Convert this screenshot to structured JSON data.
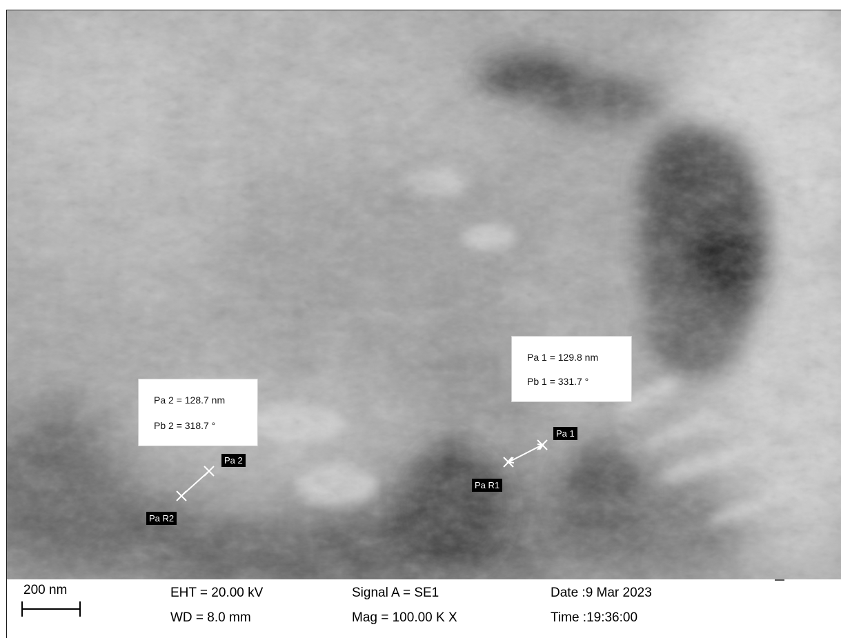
{
  "measurements": [
    {
      "label": "Pa 1",
      "distance": "Pa 1 = 129.8 nm",
      "angle": "Pb 1 = 331.7 °",
      "ref": "Pa R1"
    },
    {
      "label": "Pa 2",
      "distance": "Pa 2 = 128.7 nm",
      "angle": "Pb 2 = 318.7 °",
      "ref": "Pa R2"
    }
  ],
  "info_bar": {
    "scale_label": "200 nm",
    "eht": "EHT = 20.00 kV",
    "wd": "WD =  8.0 mm",
    "signal": "Signal A = SE1",
    "mag": "Mag =  100.00 K X",
    "date": "Date :9 Mar 2023",
    "time": "Time :19:36:00"
  },
  "colors": {
    "marker": "#ffffff",
    "label_bg": "#000000",
    "text": "#000000"
  }
}
